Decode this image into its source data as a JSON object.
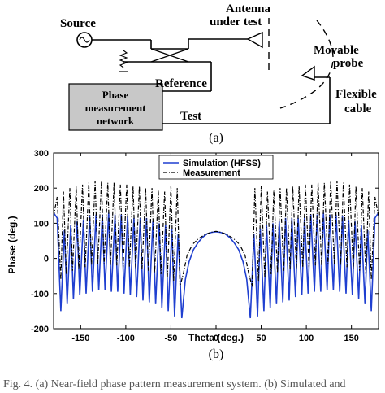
{
  "diagram": {
    "source_label": "Source",
    "antenna_label_line1": "Antenna",
    "antenna_label_line2": "under test",
    "probe_label_line1": "Movable",
    "probe_label_line2": "probe",
    "cable_label_line1": "Flexible",
    "cable_label_line2": "cable",
    "box_line1": "Phase",
    "box_line2": "measurement",
    "box_line3": "network",
    "reference_label": "Reference",
    "test_label": "Test",
    "caption": "(a)",
    "box_color": "#c8c8c8"
  },
  "chart_caption": "(b)",
  "footer_fragment": "Fig. 4.  (a) Near-field phase pattern measurement system. (b) Simulated and",
  "chart_data": {
    "type": "line",
    "xlabel": "Theta (deg.)",
    "ylabel": "Phase (deg.)",
    "xlim": [
      -180,
      180
    ],
    "ylim": [
      -200,
      300
    ],
    "xticks": [
      -150,
      -100,
      -50,
      0,
      50,
      100,
      150
    ],
    "yticks": [
      -200,
      -100,
      0,
      100,
      200,
      300
    ],
    "grid": false,
    "legend_position": "top-center",
    "series": [
      {
        "name": "Simulation (HFSS)",
        "color": "#1f3fd0",
        "style": "solid",
        "x": [
          -180,
          -176,
          -172,
          -168,
          -165,
          -161,
          -158,
          -154,
          -151,
          -147,
          -144,
          -140,
          -137,
          -133,
          -130,
          -126,
          -123,
          -119,
          -116,
          -112,
          -109,
          -105,
          -102,
          -98,
          -95,
          -91,
          -88,
          -84,
          -81,
          -77,
          -74,
          -70,
          -67,
          -63,
          -60,
          -56,
          -53,
          -49,
          -46,
          -42,
          -38,
          -34,
          -30,
          -25,
          -20,
          -15,
          -10,
          -5,
          0,
          5,
          10,
          15,
          20,
          25,
          30,
          34,
          38,
          42,
          46,
          49,
          53,
          56,
          60,
          63,
          67,
          70,
          74,
          77,
          81,
          84,
          88,
          91,
          95,
          98,
          102,
          105,
          109,
          112,
          116,
          119,
          123,
          126,
          130,
          133,
          137,
          140,
          144,
          147,
          151,
          154,
          158,
          161,
          165,
          168,
          172,
          176,
          180
        ],
        "y": [
          130,
          115,
          -150,
          80,
          -130,
          95,
          -115,
          105,
          -105,
          110,
          -100,
          120,
          -95,
          125,
          -90,
          125,
          -90,
          130,
          -95,
          125,
          -95,
          125,
          -100,
          120,
          -105,
          115,
          -110,
          115,
          -120,
          115,
          -125,
          105,
          -130,
          100,
          -140,
          95,
          -150,
          85,
          -165,
          70,
          -170,
          -60,
          -10,
          25,
          45,
          60,
          70,
          74,
          76,
          74,
          70,
          60,
          45,
          25,
          -10,
          -60,
          -170,
          70,
          -165,
          85,
          -150,
          95,
          -140,
          100,
          -130,
          105,
          -125,
          115,
          -120,
          115,
          -110,
          115,
          -105,
          120,
          -100,
          125,
          -95,
          125,
          -95,
          130,
          -90,
          125,
          -90,
          125,
          -95,
          120,
          -100,
          110,
          -105,
          105,
          -115,
          95,
          -130,
          80,
          -150,
          115,
          130
        ]
      },
      {
        "name": "Measurement",
        "color": "#000000",
        "style": "dashdot",
        "x": [
          -180,
          -176,
          -172,
          -169,
          -166,
          -162,
          -159,
          -155,
          -152,
          -148,
          -145,
          -141,
          -138,
          -134,
          -131,
          -127,
          -124,
          -120,
          -117,
          -113,
          -110,
          -106,
          -103,
          -99,
          -96,
          -92,
          -89,
          -85,
          -82,
          -78,
          -75,
          -71,
          -68,
          -64,
          -61,
          -57,
          -54,
          -50,
          -47,
          -43,
          -40,
          -36,
          -32,
          -26,
          -20,
          -14,
          -8,
          -3,
          0,
          3,
          8,
          14,
          20,
          26,
          32,
          36,
          40,
          43,
          47,
          50,
          54,
          57,
          61,
          64,
          68,
          71,
          75,
          78,
          82,
          85,
          89,
          92,
          96,
          99,
          103,
          106,
          110,
          113,
          117,
          120,
          124,
          127,
          131,
          134,
          138,
          141,
          145,
          148,
          152,
          155,
          159,
          162,
          166,
          169,
          172,
          176,
          180
        ],
        "y": [
          120,
          175,
          -60,
          190,
          -45,
          200,
          -35,
          205,
          -30,
          210,
          -25,
          215,
          -20,
          220,
          -15,
          220,
          -15,
          215,
          -20,
          215,
          -20,
          210,
          -25,
          210,
          -25,
          205,
          -30,
          205,
          -30,
          200,
          -35,
          200,
          -40,
          195,
          -45,
          190,
          -55,
          205,
          -65,
          200,
          -80,
          -40,
          10,
          40,
          55,
          65,
          72,
          76,
          77,
          76,
          72,
          65,
          55,
          40,
          10,
          -40,
          -80,
          200,
          -65,
          205,
          -55,
          190,
          -45,
          195,
          -40,
          200,
          -35,
          200,
          -30,
          205,
          -30,
          205,
          -25,
          210,
          -25,
          210,
          -20,
          215,
          -20,
          215,
          -15,
          220,
          -15,
          220,
          -20,
          215,
          -25,
          210,
          -30,
          205,
          -35,
          200,
          -45,
          190,
          -60,
          175,
          120
        ]
      }
    ]
  }
}
